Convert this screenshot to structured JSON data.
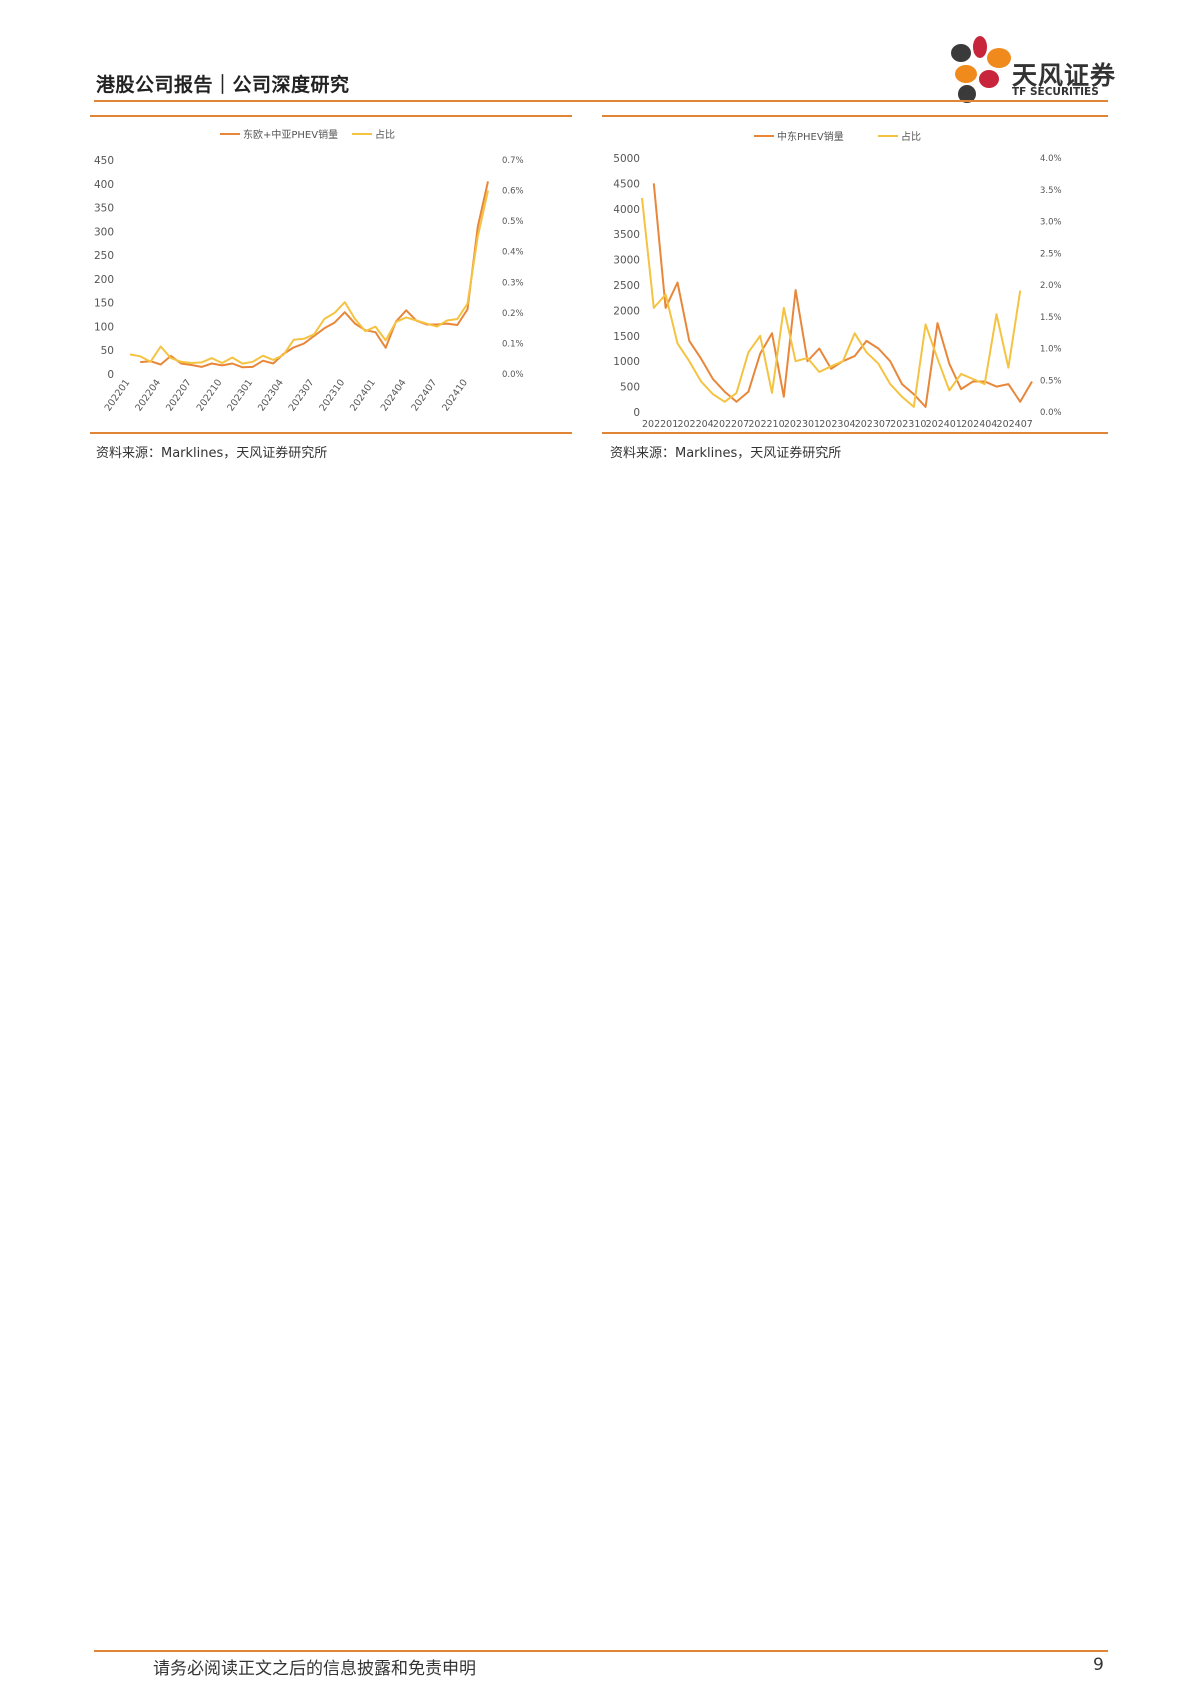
{
  "header": {
    "title": "港股公司报告｜公司深度研究",
    "logo_text": "天风证券",
    "logo_sub": "TF SECURITIES"
  },
  "colors": {
    "accent": "#E08436",
    "series_volume": "#E8873A",
    "series_share": "#F5C342",
    "logo_red": "#C8243C",
    "logo_orange": "#F08A1C",
    "logo_dark": "#3A3A3A"
  },
  "chart_data": [
    {
      "type": "line",
      "title": "",
      "legend": [
        "东欧+中亚PHEV销量",
        "占比"
      ],
      "x": [
        "202201",
        "202202",
        "202203",
        "202204",
        "202205",
        "202206",
        "202207",
        "202208",
        "202209",
        "202210",
        "202211",
        "202212",
        "202301",
        "202302",
        "202303",
        "202304",
        "202305",
        "202306",
        "202307",
        "202308",
        "202309",
        "202310",
        "202311",
        "202312",
        "202401",
        "202402",
        "202403",
        "202404",
        "202405",
        "202406",
        "202407",
        "202408",
        "202409",
        "202410",
        "202411",
        "202412"
      ],
      "x_tick_labels": [
        "202201",
        "202204",
        "202207",
        "202210",
        "202301",
        "202304",
        "202307",
        "202310",
        "202401",
        "202404",
        "202407",
        "202410"
      ],
      "y_left_ticks": [
        "450",
        "400",
        "350",
        "300",
        "250",
        "200",
        "150",
        "100",
        "50",
        "0"
      ],
      "y_right_ticks": [
        "0.7%",
        "0.6%",
        "0.5%",
        "0.4%",
        "0.3%",
        "0.2%",
        "0.1%",
        "0.0%"
      ],
      "ylim_left": [
        0,
        450
      ],
      "ylim_right": [
        0,
        0.7
      ],
      "series": [
        {
          "name": "东欧+中亚PHEV销量",
          "axis": "left",
          "values": [
            null,
            25,
            27,
            20,
            38,
            22,
            19,
            15,
            22,
            18,
            22,
            14,
            15,
            28,
            22,
            42,
            56,
            64,
            80,
            96,
            108,
            130,
            106,
            92,
            88,
            55,
            110,
            134,
            112,
            104,
            104,
            106,
            103,
            136,
            310,
            405
          ]
        },
        {
          "name": "占比",
          "axis": "right",
          "values": [
            0.064,
            0.058,
            0.04,
            0.09,
            0.052,
            0.04,
            0.036,
            0.038,
            0.052,
            0.036,
            0.054,
            0.034,
            0.04,
            0.06,
            0.046,
            0.062,
            0.112,
            0.115,
            0.13,
            0.18,
            0.2,
            0.235,
            0.18,
            0.14,
            0.155,
            0.11,
            0.17,
            0.185,
            0.175,
            0.165,
            0.155,
            0.175,
            0.18,
            0.23,
            0.45,
            0.6
          ]
        }
      ],
      "source": "资料来源：Marklines，天风证券研究所"
    },
    {
      "type": "line",
      "title": "",
      "legend": [
        "中东PHEV销量",
        "占比"
      ],
      "x": [
        "202201",
        "202202",
        "202203",
        "202204",
        "202205",
        "202206",
        "202207",
        "202208",
        "202209",
        "202210",
        "202211",
        "202212",
        "202301",
        "202302",
        "202303",
        "202304",
        "202305",
        "202306",
        "202307",
        "202308",
        "202309",
        "202310",
        "202311",
        "202312",
        "202401",
        "202402",
        "202403",
        "202404",
        "202405",
        "202406",
        "202407",
        "202408",
        "202409",
        "202410"
      ],
      "x_tick_labels": [
        "202201",
        "202204",
        "202207",
        "202210",
        "202301",
        "202304",
        "202307",
        "202310",
        "202401",
        "202404",
        "202407"
      ],
      "y_left_ticks": [
        "5000",
        "4500",
        "4000",
        "3500",
        "3000",
        "2500",
        "2000",
        "1500",
        "1000",
        "500",
        "0"
      ],
      "y_right_ticks": [
        "4.0%",
        "3.5%",
        "3.0%",
        "2.5%",
        "2.0%",
        "1.5%",
        "1.0%",
        "0.5%",
        "0.0%"
      ],
      "ylim_left": [
        0,
        5000
      ],
      "ylim_right": [
        0,
        0.04
      ],
      "series": [
        {
          "name": "中东PHEV销量",
          "axis": "left",
          "values": [
            null,
            4500,
            2050,
            2550,
            1400,
            1050,
            650,
            400,
            200,
            400,
            1150,
            1550,
            300,
            2400,
            1000,
            1250,
            850,
            1000,
            1100,
            1400,
            1250,
            1000,
            550,
            350,
            100,
            1750,
            950,
            450,
            600,
            600,
            500,
            550,
            200,
            600
          ]
        },
        {
          "name": "占比",
          "axis": "right",
          "values": [
            0.0337,
            0.0164,
            0.0185,
            0.0108,
            0.008,
            0.0048,
            0.0028,
            0.0016,
            0.003,
            0.0094,
            0.012,
            0.003,
            0.0164,
            0.008,
            0.0085,
            0.0063,
            0.0072,
            0.008,
            0.0124,
            0.0094,
            0.0076,
            0.0044,
            0.0024,
            0.0008,
            0.0138,
            0.0084,
            0.0034,
            0.006,
            0.0052,
            0.0044,
            0.0154,
            0.007,
            0.0191,
            null
          ]
        }
      ],
      "source": "资料来源：Marklines，天风证券研究所"
    }
  ],
  "footer": {
    "disclaimer": "请务必阅读正文之后的信息披露和免责申明",
    "page": "9"
  }
}
